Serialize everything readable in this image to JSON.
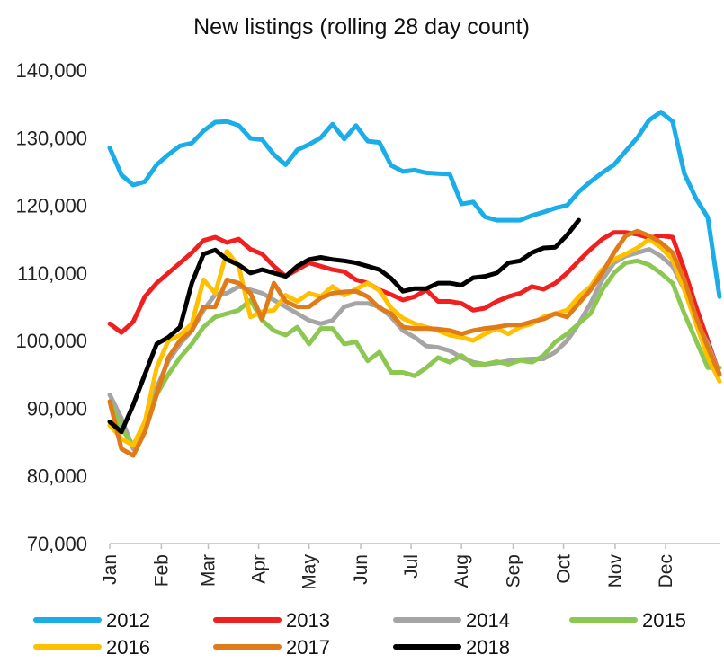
{
  "chart_data": {
    "type": "line",
    "title": "New listings (rolling 28 day count)",
    "xlabel": "",
    "ylabel": "",
    "ylim": [
      70000,
      140000
    ],
    "y_ticks": [
      70000,
      80000,
      90000,
      100000,
      110000,
      120000,
      130000,
      140000
    ],
    "y_tick_labels": [
      "70,000",
      "80,000",
      "90,000",
      "100,000",
      "110,000",
      "120,000",
      "130,000",
      "140,000"
    ],
    "x_unit": "week of year (1-53)",
    "xlim": [
      1,
      53
    ],
    "x_ticks": [
      1,
      5.4,
      9.4,
      13.7,
      18,
      22.4,
      26.7,
      31,
      35.4,
      39.7,
      44.1,
      48.4
    ],
    "x_tick_labels": [
      "Jan",
      "Feb",
      "Mar",
      "Apr",
      "May",
      "Jun",
      "Jul",
      "Aug",
      "Sep",
      "Oct",
      "Nov",
      "Dec"
    ],
    "grid": false,
    "legend_position": "bottom",
    "series": [
      {
        "name": "2012",
        "color": "#1AADE8",
        "x": [
          1,
          2,
          3,
          4,
          5,
          6,
          7,
          8,
          9,
          10,
          11,
          12,
          13,
          14,
          15,
          16,
          17,
          18,
          19,
          20,
          21,
          22,
          23,
          24,
          25,
          26,
          27,
          28,
          29,
          30,
          31,
          32,
          33,
          34,
          35,
          36,
          37,
          38,
          39,
          40,
          41,
          42,
          43,
          44,
          45,
          46,
          47,
          48,
          49,
          50,
          51,
          52,
          53
        ],
        "values": [
          128500,
          124500,
          123000,
          123500,
          126000,
          127500,
          128800,
          129200,
          131000,
          132300,
          132400,
          131800,
          129900,
          129700,
          127500,
          126000,
          128200,
          129000,
          130000,
          132000,
          129800,
          131800,
          129500,
          129300,
          125900,
          125000,
          125200,
          124800,
          124700,
          124600,
          120200,
          120500,
          118300,
          117800,
          117800,
          117800,
          118500,
          119000,
          119600,
          120000,
          122000,
          123500,
          124800,
          126000,
          128000,
          130000,
          132600,
          133800,
          132400,
          124700,
          121000,
          118200,
          106500
        ]
      },
      {
        "name": "2013",
        "color": "#F02020",
        "x": [
          1,
          2,
          3,
          4,
          5,
          6,
          7,
          8,
          9,
          10,
          11,
          12,
          13,
          14,
          15,
          16,
          17,
          18,
          19,
          20,
          21,
          22,
          23,
          24,
          25,
          26,
          27,
          28,
          29,
          30,
          31,
          32,
          33,
          34,
          35,
          36,
          37,
          38,
          39,
          40,
          41,
          42,
          43,
          44,
          45,
          46,
          47,
          48,
          49,
          50,
          51,
          52,
          53
        ],
        "values": [
          102500,
          101200,
          102800,
          106500,
          108500,
          110000,
          111500,
          113000,
          114800,
          115300,
          114500,
          115000,
          113500,
          112800,
          111000,
          109500,
          110500,
          111500,
          111000,
          110500,
          110200,
          109000,
          108500,
          107500,
          106800,
          106000,
          106500,
          107500,
          105800,
          105800,
          105500,
          104500,
          104800,
          105800,
          106500,
          107000,
          108000,
          107600,
          108500,
          110000,
          111800,
          113500,
          115000,
          116000,
          116000,
          115700,
          115200,
          115500,
          115300,
          110500,
          105000,
          100000,
          95000
        ]
      },
      {
        "name": "2014",
        "color": "#A5A5A5",
        "x": [
          1,
          2,
          3,
          4,
          5,
          6,
          7,
          8,
          9,
          10,
          11,
          12,
          13,
          14,
          15,
          16,
          17,
          18,
          19,
          20,
          21,
          22,
          23,
          24,
          25,
          26,
          27,
          28,
          29,
          30,
          31,
          32,
          33,
          34,
          35,
          36,
          37,
          38,
          39,
          40,
          41,
          42,
          43,
          44,
          45,
          46,
          47,
          48,
          49,
          50,
          51,
          52,
          53
        ],
        "values": [
          92000,
          88500,
          84000,
          88000,
          93000,
          97000,
          99500,
          101500,
          104500,
          106800,
          107000,
          108000,
          107500,
          107000,
          106000,
          105000,
          104000,
          103000,
          102500,
          103000,
          105000,
          105500,
          105500,
          105000,
          103500,
          101500,
          100500,
          99200,
          99000,
          98500,
          97500,
          96800,
          96500,
          96700,
          97000,
          97200,
          97300,
          97300,
          98300,
          100000,
          102500,
          105500,
          109000,
          111500,
          112500,
          113000,
          113500,
          112500,
          111000,
          107500,
          103000,
          99500,
          95000
        ]
      },
      {
        "name": "2015",
        "color": "#8BC751",
        "x": [
          1,
          2,
          3,
          4,
          5,
          6,
          7,
          8,
          9,
          10,
          11,
          12,
          13,
          14,
          15,
          16,
          17,
          18,
          19,
          20,
          21,
          22,
          23,
          24,
          25,
          26,
          27,
          28,
          29,
          30,
          31,
          32,
          33,
          34,
          35,
          36,
          37,
          38,
          39,
          40,
          41,
          42,
          43,
          44,
          45,
          46,
          47,
          48,
          49,
          50,
          51,
          52,
          53
        ],
        "values": [
          91000,
          87000,
          84500,
          88000,
          92000,
          95000,
          97500,
          99500,
          102000,
          103500,
          104000,
          104500,
          106000,
          103000,
          101500,
          100800,
          102000,
          99500,
          101800,
          101800,
          99500,
          99800,
          97000,
          98300,
          95300,
          95300,
          94800,
          96000,
          97500,
          96800,
          97800,
          96500,
          96500,
          96900,
          96500,
          97100,
          96800,
          97800,
          99800,
          101000,
          102500,
          104000,
          107500,
          110000,
          111500,
          111800,
          111200,
          110000,
          108500,
          104000,
          100000,
          96000,
          96000
        ]
      },
      {
        "name": "2016",
        "color": "#FFC000",
        "x": [
          1,
          2,
          3,
          4,
          5,
          6,
          7,
          8,
          9,
          10,
          11,
          12,
          13,
          14,
          15,
          16,
          17,
          18,
          19,
          20,
          21,
          22,
          23,
          24,
          25,
          26,
          27,
          28,
          29,
          30,
          31,
          32,
          33,
          34,
          35,
          36,
          37,
          38,
          39,
          40,
          41,
          42,
          43,
          44,
          45,
          46,
          47,
          48,
          49,
          50,
          51,
          52,
          53
        ],
        "values": [
          87500,
          85500,
          84500,
          88000,
          96000,
          100000,
          100800,
          102500,
          109000,
          107000,
          113200,
          111000,
          103500,
          104300,
          104500,
          106700,
          105800,
          107000,
          106500,
          108000,
          106700,
          107600,
          108500,
          107400,
          104800,
          103300,
          102500,
          102000,
          101500,
          100800,
          100500,
          100000,
          101000,
          101800,
          101000,
          102000,
          102500,
          103500,
          104000,
          104500,
          106500,
          108000,
          110500,
          112000,
          112800,
          113700,
          115000,
          113800,
          112000,
          107500,
          102500,
          97500,
          94000
        ]
      },
      {
        "name": "2017",
        "color": "#E07B1A",
        "x": [
          1,
          2,
          3,
          4,
          5,
          6,
          7,
          8,
          9,
          10,
          11,
          12,
          13,
          14,
          15,
          16,
          17,
          18,
          19,
          20,
          21,
          22,
          23,
          24,
          25,
          26,
          27,
          28,
          29,
          30,
          31,
          32,
          33,
          34,
          35,
          36,
          37,
          38,
          39,
          40,
          41,
          42,
          43,
          44,
          45,
          46,
          47,
          48,
          49,
          50,
          51,
          52,
          53
        ],
        "values": [
          91000,
          84000,
          83000,
          86500,
          92000,
          97500,
          100000,
          101500,
          105000,
          105000,
          109000,
          108500,
          107000,
          103200,
          108500,
          105800,
          105000,
          105000,
          106300,
          107000,
          107200,
          107300,
          106500,
          104800,
          104000,
          102000,
          101800,
          101800,
          101700,
          101500,
          101000,
          101500,
          101800,
          102000,
          102300,
          102300,
          102800,
          103200,
          104000,
          103500,
          105500,
          107500,
          110000,
          113000,
          115500,
          116200,
          115500,
          114500,
          113000,
          109000,
          103500,
          99000,
          95000
        ]
      },
      {
        "name": "2018",
        "color": "#000000",
        "x": [
          1,
          2,
          3,
          4,
          5,
          6,
          7,
          8,
          9,
          10,
          11,
          12,
          13,
          14,
          15,
          16,
          17,
          18,
          19,
          20,
          21,
          22,
          23,
          24,
          25,
          26,
          27,
          28,
          29,
          30,
          31,
          32,
          33,
          34,
          35,
          36,
          37,
          38,
          39,
          40,
          41
        ],
        "values": [
          88000,
          86500,
          90500,
          95000,
          99500,
          100500,
          102000,
          108500,
          112800,
          113400,
          112000,
          111200,
          110000,
          110500,
          110000,
          109500,
          111000,
          112000,
          112300,
          112000,
          111800,
          111500,
          111000,
          110500,
          109200,
          107300,
          107700,
          107700,
          108500,
          108500,
          108200,
          109300,
          109500,
          110000,
          111500,
          111800,
          113000,
          113700,
          113800,
          115600,
          117800
        ]
      }
    ]
  }
}
